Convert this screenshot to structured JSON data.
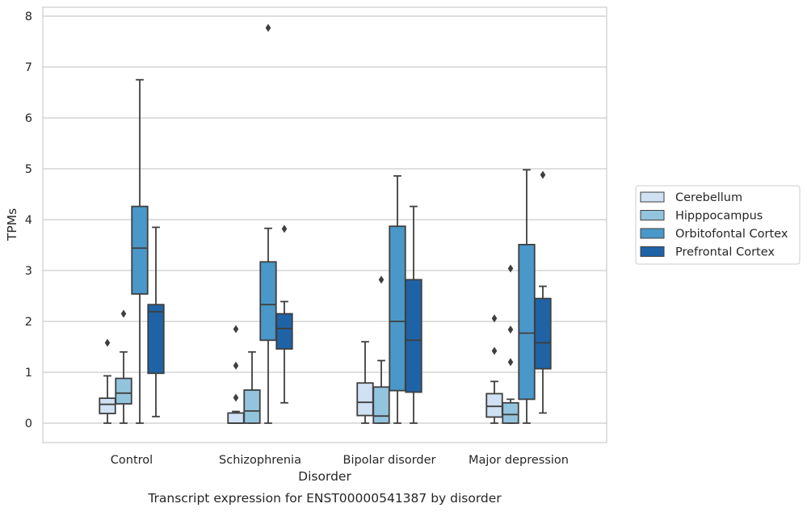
{
  "chart_data": {
    "type": "box",
    "title": "Transcript expression for ENST00000541387 by disorder",
    "xlabel": "Disorder",
    "ylabel": "TPMs",
    "ylim": [
      -0.38,
      8.15
    ],
    "yticks": [
      0,
      1,
      2,
      3,
      4,
      5,
      6,
      7,
      8
    ],
    "categories": [
      "Control",
      "Schizophrenia",
      "Bipolar disorder",
      "Major depression"
    ],
    "grid": true,
    "legend_position": "right",
    "series": [
      {
        "name": "Cerebellum",
        "color": "#cfe1f2",
        "boxes": [
          {
            "whislo": 0.0,
            "q1": 0.19,
            "med": 0.37,
            "q3": 0.49,
            "whishi": 0.93,
            "fliers": [
              1.58
            ]
          },
          {
            "whislo": 0.0,
            "q1": 0.0,
            "med": 0.0,
            "q3": 0.2,
            "whishi": 0.23,
            "fliers": [
              0.5,
              1.13,
              1.85
            ]
          },
          {
            "whislo": 0.0,
            "q1": 0.15,
            "med": 0.41,
            "q3": 0.79,
            "whishi": 1.6,
            "fliers": []
          },
          {
            "whislo": 0.0,
            "q1": 0.12,
            "med": 0.33,
            "q3": 0.58,
            "whishi": 0.82,
            "fliers": [
              1.42,
              2.06
            ]
          }
        ]
      },
      {
        "name": "Hipppocampus",
        "color": "#93c4de",
        "boxes": [
          {
            "whislo": 0.0,
            "q1": 0.38,
            "med": 0.59,
            "q3": 0.88,
            "whishi": 1.4,
            "fliers": [
              2.15
            ]
          },
          {
            "whislo": 0.0,
            "q1": 0.0,
            "med": 0.24,
            "q3": 0.65,
            "whishi": 1.4,
            "fliers": []
          },
          {
            "whislo": 0.0,
            "q1": 0.0,
            "med": 0.14,
            "q3": 0.71,
            "whishi": 1.23,
            "fliers": [
              2.82
            ]
          },
          {
            "whislo": 0.0,
            "q1": 0.0,
            "med": 0.17,
            "q3": 0.4,
            "whishi": 0.47,
            "fliers": [
              1.2,
              1.84,
              3.04
            ]
          }
        ]
      },
      {
        "name": "Orbitofontal Cortex",
        "color": "#4a98c9",
        "boxes": [
          {
            "whislo": 0.0,
            "q1": 2.54,
            "med": 3.44,
            "q3": 4.26,
            "whishi": 6.75,
            "fliers": []
          },
          {
            "whislo": 0.0,
            "q1": 1.63,
            "med": 2.33,
            "q3": 3.17,
            "whishi": 3.83,
            "fliers": [
              7.77
            ]
          },
          {
            "whislo": 0.0,
            "q1": 0.64,
            "med": 2.0,
            "q3": 3.87,
            "whishi": 4.86,
            "fliers": []
          },
          {
            "whislo": 0.0,
            "q1": 0.47,
            "med": 1.77,
            "q3": 3.51,
            "whishi": 4.98,
            "fliers": []
          }
        ]
      },
      {
        "name": "Prefrontal Cortex",
        "color": "#1f63a7",
        "boxes": [
          {
            "whislo": 0.13,
            "q1": 0.98,
            "med": 2.19,
            "q3": 2.33,
            "whishi": 3.85,
            "fliers": []
          },
          {
            "whislo": 0.4,
            "q1": 1.46,
            "med": 1.86,
            "q3": 2.15,
            "whishi": 2.39,
            "fliers": [
              3.82
            ]
          },
          {
            "whislo": 0.0,
            "q1": 0.61,
            "med": 1.63,
            "q3": 2.82,
            "whishi": 4.26,
            "fliers": []
          },
          {
            "whislo": 0.2,
            "q1": 1.07,
            "med": 1.58,
            "q3": 2.45,
            "whishi": 2.69,
            "fliers": [
              4.88
            ]
          }
        ]
      }
    ]
  }
}
